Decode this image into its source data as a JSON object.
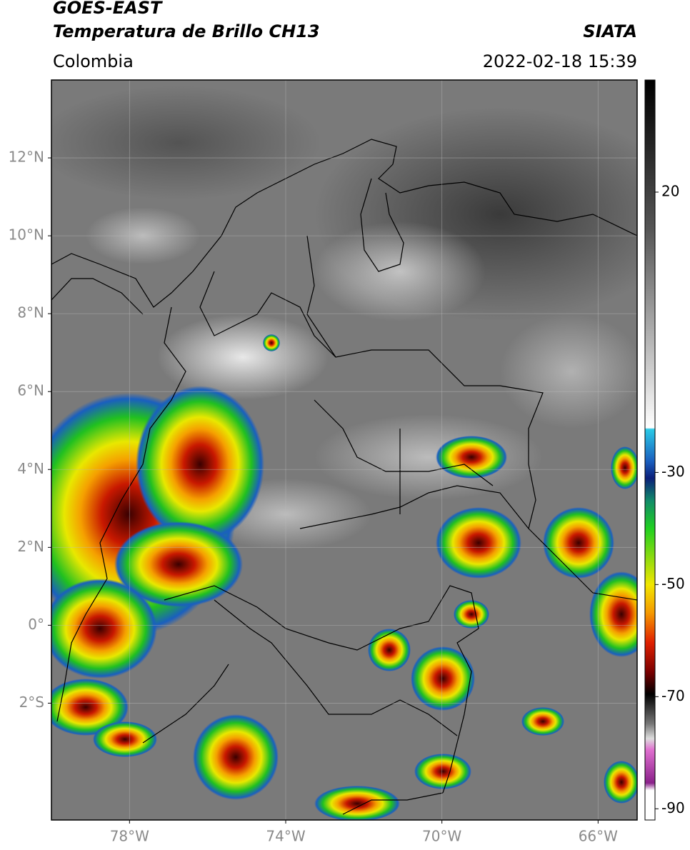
{
  "header": {
    "title": "GOES-EAST",
    "subtitle": "Temperatura de Brillo CH13",
    "source": "SIATA",
    "region": "Colombia",
    "datetime": "2022-02-18 15:39"
  },
  "map": {
    "lonlim": [
      -80,
      -65
    ],
    "latlim": [
      -5,
      14
    ],
    "lonticks": [
      {
        "value": -78,
        "label": "78°W"
      },
      {
        "value": -74,
        "label": "74°W"
      },
      {
        "value": -70,
        "label": "70°W"
      },
      {
        "value": -66,
        "label": "66°W"
      }
    ],
    "latticks": [
      {
        "value": 12,
        "label": "12°N"
      },
      {
        "value": 10,
        "label": "10°N"
      },
      {
        "value": 8,
        "label": "8°N"
      },
      {
        "value": 6,
        "label": "6°N"
      },
      {
        "value": 4,
        "label": "4°N"
      },
      {
        "value": 2,
        "label": "2°N"
      },
      {
        "value": 0,
        "label": "0°"
      },
      {
        "value": -2,
        "label": "2°S"
      }
    ]
  },
  "colorbar": {
    "lim": [
      -92,
      40
    ],
    "ticks": [
      20,
      -30,
      -50,
      -70,
      -90
    ]
  }
}
